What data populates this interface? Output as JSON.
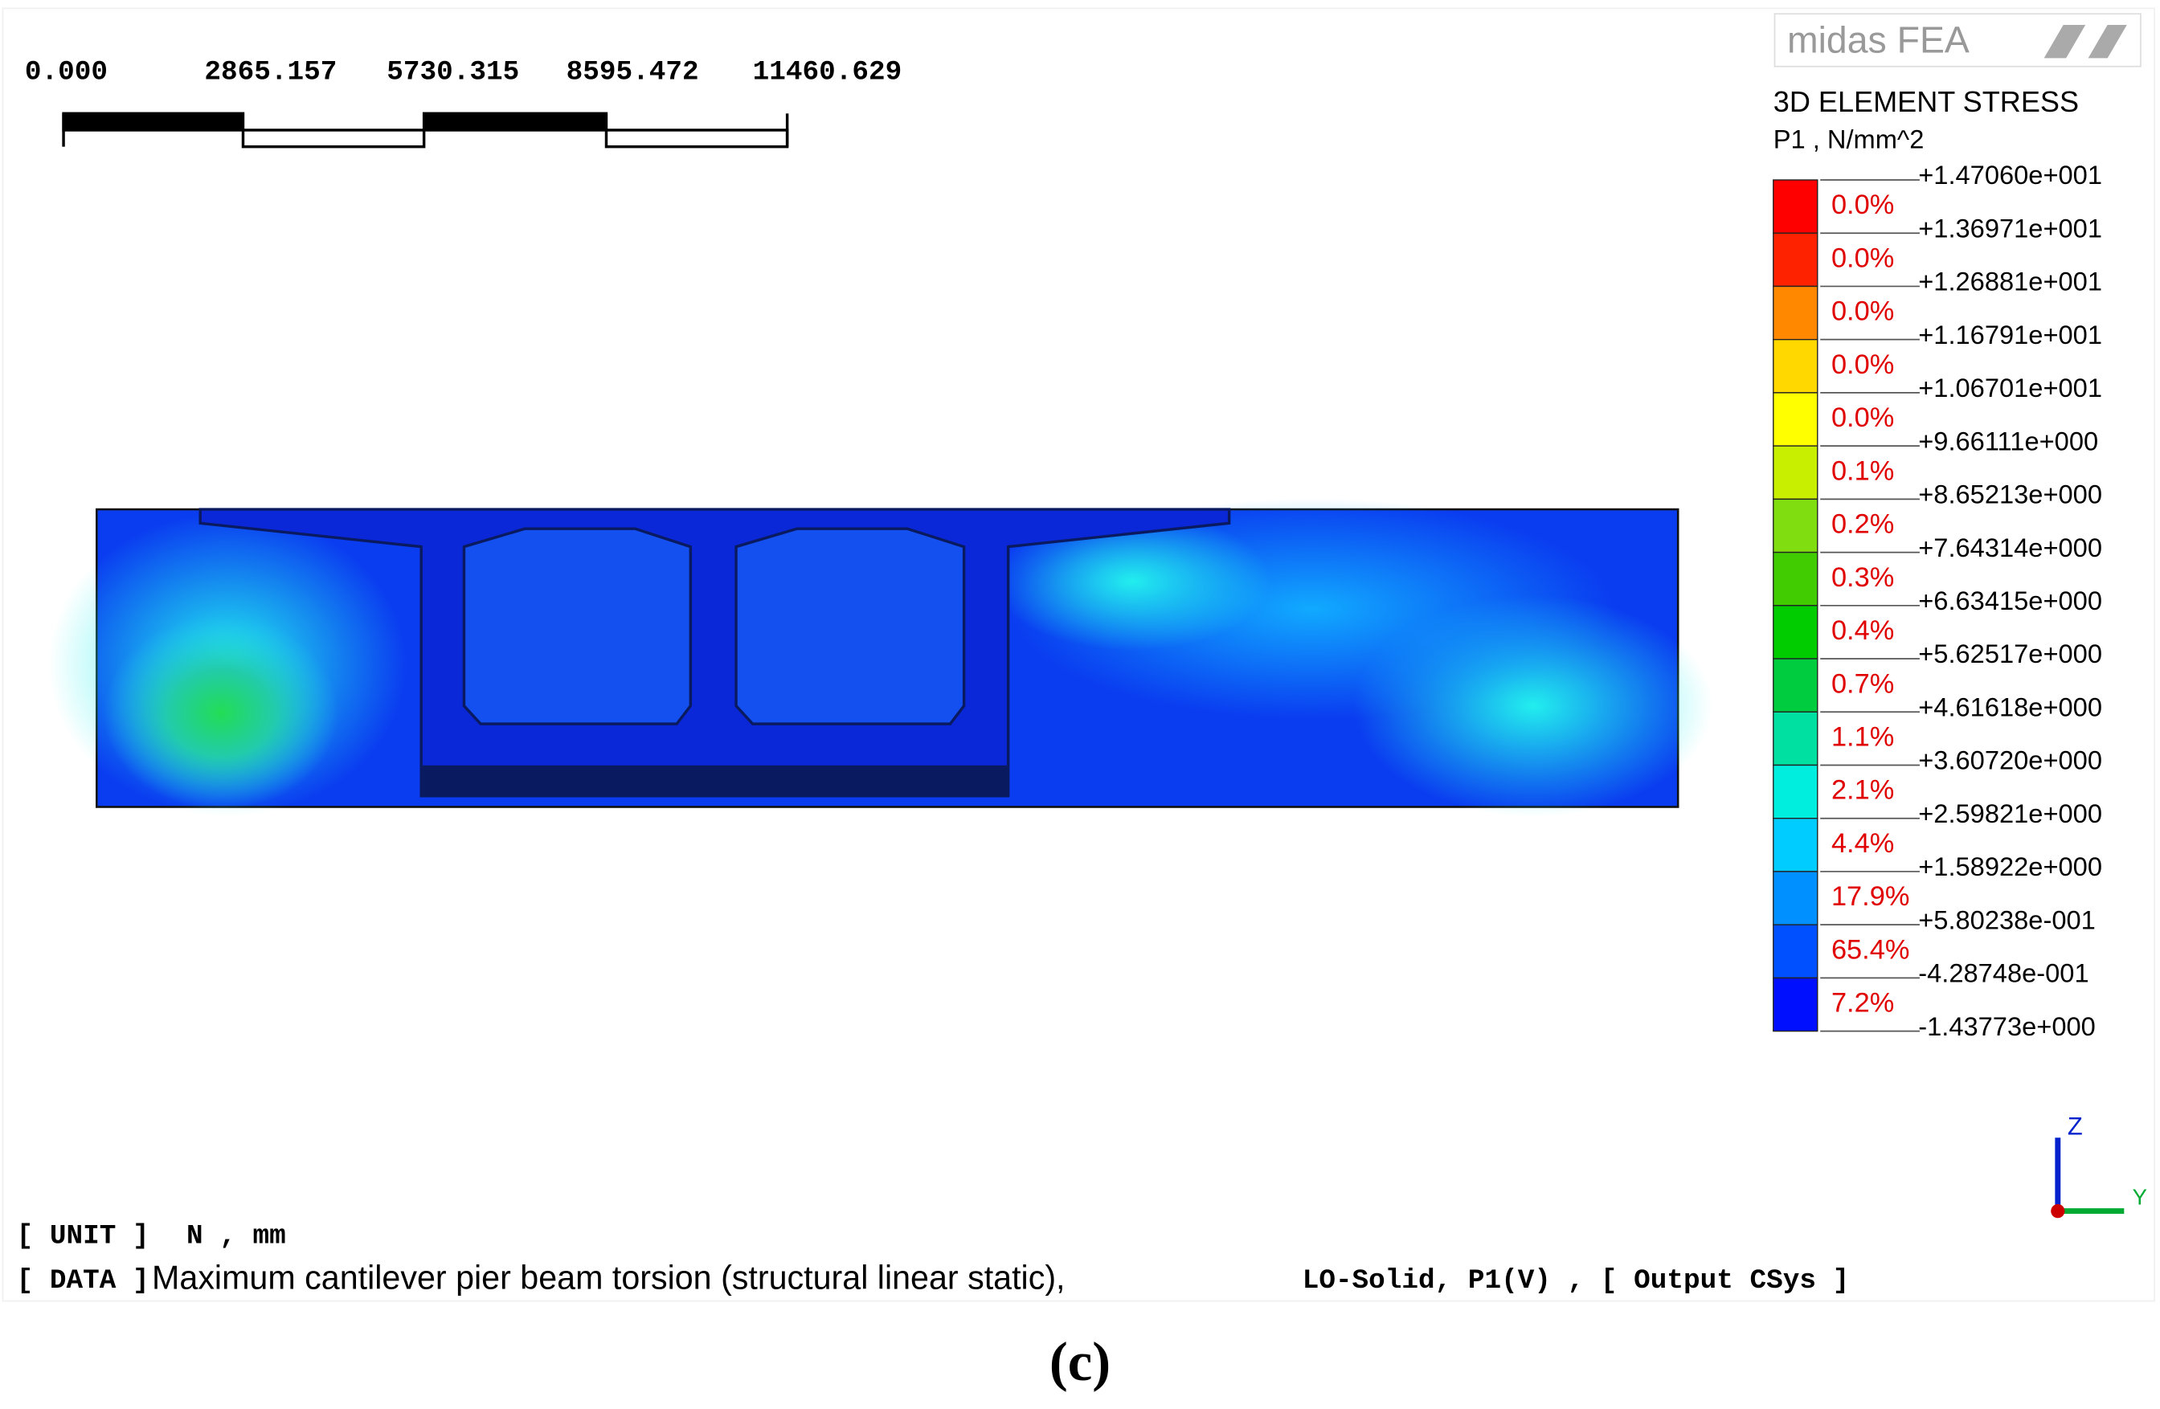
{
  "scale_bar": {
    "labels": [
      "0.000",
      "2865.157",
      "5730.315",
      "8595.472",
      "11460.629"
    ]
  },
  "logo": "midas FEA",
  "legend": {
    "title": "3D ELEMENT STRESS",
    "subtitle": "P1 , N/mm^2",
    "ticks": [
      "+1.47060e+001",
      "+1.36971e+001",
      "+1.26881e+001",
      "+1.16791e+001",
      "+1.06701e+001",
      "+9.66111e+000",
      "+8.65213e+000",
      "+7.64314e+000",
      "+6.63415e+000",
      "+5.62517e+000",
      "+4.61618e+000",
      "+3.60720e+000",
      "+2.59821e+000",
      "+1.58922e+000",
      "+5.80238e-001",
      "-4.28748e-001",
      "-1.43773e+000"
    ],
    "percents": [
      "0.0%",
      "0.0%",
      "0.0%",
      "0.0%",
      "0.0%",
      "0.1%",
      "0.2%",
      "0.3%",
      "0.4%",
      "0.7%",
      "1.1%",
      "2.1%",
      "4.4%",
      "17.9%",
      "65.4%",
      "7.2%"
    ]
  },
  "axes": {
    "z": "Z",
    "y": "Y"
  },
  "info": {
    "unit_tag": "[ UNIT ]",
    "unit": "N  ,  mm",
    "data_tag": "[ DATA ]",
    "data": "Maximum cantilever pier beam torsion (structural linear static),",
    "load": "LO-Solid, P1(V)  ,  [ Output CSys ]"
  },
  "caption": "(c)"
}
